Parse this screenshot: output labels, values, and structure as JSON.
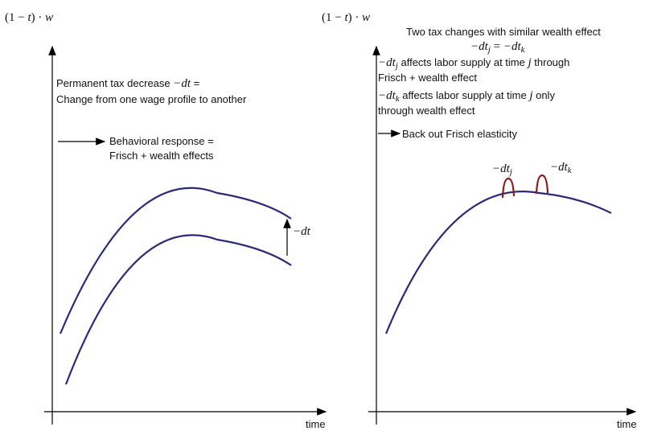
{
  "left": {
    "axis_label": [
      "(1 − ",
      "t",
      ") · ",
      "w"
    ],
    "note": [
      "Permanent tax decrease ",
      "−dt",
      " ="
    ],
    "note2": "Change from one wage profile to another",
    "response": "Behavioral response =",
    "response2": "Frisch + wealth effects",
    "shift": "−dt",
    "x_label": "time"
  },
  "right": {
    "axis_label": [
      "(1 − ",
      "t",
      ") · ",
      "w"
    ],
    "heading": "Two tax changes with similar wealth effect",
    "equation": [
      "−dt",
      "j",
      " = ",
      "−dt",
      "k"
    ],
    "line1": [
      "−dt",
      "j",
      " affects labor supply at time ",
      "j",
      " through"
    ],
    "line1b": "Frisch + wealth effect",
    "line2": [
      "−dt",
      "k",
      " affects labor supply at time ",
      "j",
      " only"
    ],
    "line2b": "through wealth effect",
    "conclusion": "Back out Frisch elasticity",
    "bump_j": [
      "−dt",
      "j"
    ],
    "bump_k": [
      "−dt",
      "k"
    ],
    "x_label": "time"
  }
}
